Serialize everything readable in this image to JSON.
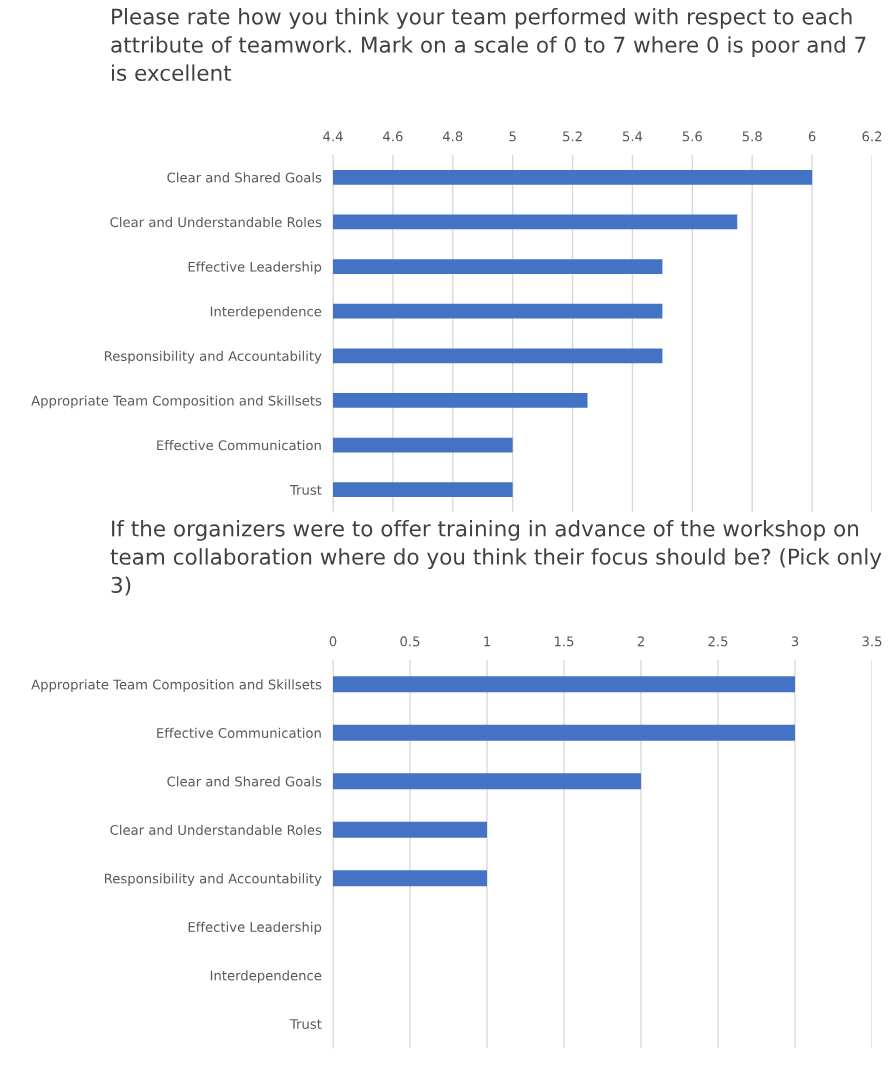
{
  "chart_data": [
    {
      "type": "bar",
      "orientation": "horizontal",
      "title": "Please rate how you think your team performed with respect to each attribute of teamwork. Mark on a scale of 0 to 7 where 0 is poor and 7 is excellent",
      "categories": [
        "Clear and Shared Goals",
        "Clear and Understandable Roles",
        "Effective Leadership",
        "Interdependence",
        "Responsibility and Accountability",
        "Appropriate Team Composition and Skillsets",
        "Effective Communication",
        "Trust"
      ],
      "values": [
        6,
        5.75,
        5.5,
        5.5,
        5.5,
        5.25,
        5,
        5
      ],
      "color": "#4472c4",
      "xlim": [
        4.4,
        6.2
      ],
      "xticks": [
        4.4,
        4.6,
        4.8,
        5,
        5.2,
        5.4,
        5.6,
        5.8,
        6,
        6.2
      ],
      "grid": "x",
      "legend": false
    },
    {
      "type": "bar",
      "orientation": "horizontal",
      "title": "If the organizers were to offer training in advance of the workshop on team collaboration where do you think their focus should be? (Pick only 3)",
      "categories": [
        "Appropriate Team Composition and Skillsets",
        "Effective Communication",
        "Clear and Shared Goals",
        "Clear and Understandable Roles",
        "Responsibility and Accountability",
        "Effective Leadership",
        "Interdependence",
        "Trust"
      ],
      "values": [
        3,
        3,
        2,
        1,
        1,
        0,
        0,
        0
      ],
      "color": "#4472c4",
      "xlim": [
        0,
        3.5
      ],
      "xticks": [
        0,
        0.5,
        1,
        1.5,
        2,
        2.5,
        3,
        3.5
      ],
      "grid": "x",
      "legend": false
    }
  ]
}
